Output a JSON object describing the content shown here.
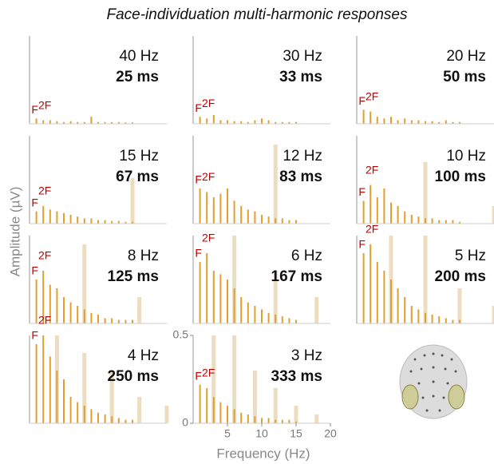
{
  "title": "Face-individuation multi-harmonic responses",
  "y_label": "Amplitude (µV)",
  "x_label": "Frequency (Hz)",
  "chart_data": [
    {
      "type": "spectrum",
      "title": "40 Hz",
      "subtitle": "25 ms",
      "annotations": [
        "F",
        "2F"
      ],
      "color": "#e0a030",
      "x": [
        1,
        2,
        3,
        4,
        5,
        6,
        7,
        8,
        9,
        10,
        11,
        12,
        13,
        14,
        15
      ],
      "values": [
        0.03,
        0.02,
        0.02,
        0.015,
        0.01,
        0.015,
        0.01,
        0.01,
        0.04,
        0.01,
        0.01,
        0.01,
        0.01,
        0.008,
        0.008
      ],
      "xlim": [
        0,
        20
      ],
      "ylim": [
        0,
        0.5
      ]
    },
    {
      "type": "spectrum",
      "title": "30 Hz",
      "subtitle": "33 ms",
      "annotations": [
        "F",
        "2F"
      ],
      "color": "#e0a030",
      "x": [
        1,
        2,
        3,
        4,
        5,
        6,
        7,
        8,
        9,
        10,
        11,
        12,
        13,
        14,
        15
      ],
      "values": [
        0.04,
        0.03,
        0.05,
        0.02,
        0.02,
        0.015,
        0.015,
        0.01,
        0.02,
        0.03,
        0.02,
        0.01,
        0.01,
        0.01,
        0.01
      ],
      "xlim": [
        0,
        20
      ],
      "ylim": [
        0,
        0.5
      ]
    },
    {
      "type": "spectrum",
      "title": "20 Hz",
      "subtitle": "50 ms",
      "annotations": [
        "F",
        "2F"
      ],
      "color": "#e0a030",
      "x": [
        1,
        2,
        3,
        4,
        5,
        6,
        7,
        8,
        9,
        10,
        11,
        12,
        13,
        14,
        15
      ],
      "values": [
        0.08,
        0.07,
        0.04,
        0.03,
        0.04,
        0.02,
        0.03,
        0.02,
        0.02,
        0.015,
        0.015,
        0.01,
        0.02,
        0.01,
        0.01
      ],
      "xlim": [
        0,
        20
      ],
      "ylim": [
        0,
        0.5
      ]
    },
    {
      "type": "spectrum",
      "title": "15 Hz",
      "subtitle": "67 ms",
      "annotations": [
        "F",
        "2F"
      ],
      "color": "#e0a030",
      "x": [
        1,
        2,
        3,
        4,
        5,
        6,
        7,
        8,
        9,
        10,
        11,
        12,
        13,
        14,
        15
      ],
      "values": [
        0.07,
        0.1,
        0.08,
        0.07,
        0.06,
        0.05,
        0.04,
        0.03,
        0.03,
        0.02,
        0.02,
        0.015,
        0.015,
        0.01,
        0.01
      ],
      "base": {
        "color": "#ecdcc0",
        "x": [
          15
        ],
        "values": [
          0.26
        ]
      },
      "xlim": [
        0,
        20
      ],
      "ylim": [
        0,
        0.5
      ]
    },
    {
      "type": "spectrum",
      "title": "12 Hz",
      "subtitle": "83 ms",
      "annotations": [
        "F",
        "2F"
      ],
      "color": "#e0a030",
      "x": [
        1,
        2,
        3,
        4,
        5,
        6,
        7,
        8,
        9,
        10,
        11,
        12,
        13,
        14,
        15
      ],
      "values": [
        0.2,
        0.18,
        0.15,
        0.17,
        0.2,
        0.13,
        0.1,
        0.08,
        0.07,
        0.05,
        0.04,
        0.03,
        0.03,
        0.02,
        0.02
      ],
      "base": {
        "color": "#ecdcc0",
        "x": [
          12
        ],
        "values": [
          0.45
        ]
      },
      "xlim": [
        0,
        20
      ],
      "ylim": [
        0,
        0.5
      ]
    },
    {
      "type": "spectrum",
      "title": "10 Hz",
      "subtitle": "100 ms",
      "annotations": [
        "F",
        "2F"
      ],
      "color": "#e0a030",
      "x": [
        1,
        2,
        3,
        4,
        5,
        6,
        7,
        8,
        9,
        10,
        11,
        12,
        13,
        14,
        15
      ],
      "values": [
        0.13,
        0.22,
        0.15,
        0.2,
        0.12,
        0.1,
        0.07,
        0.05,
        0.04,
        0.03,
        0.03,
        0.02,
        0.02,
        0.02,
        0.01
      ],
      "base": {
        "color": "#ecdcc0",
        "x": [
          10,
          20
        ],
        "values": [
          0.35,
          0.1
        ]
      },
      "xlim": [
        0,
        20
      ],
      "ylim": [
        0,
        0.5
      ]
    },
    {
      "type": "spectrum",
      "title": "8 Hz",
      "subtitle": "125 ms",
      "annotations": [
        "F",
        "2F"
      ],
      "color": "#e0a030",
      "x": [
        1,
        2,
        3,
        4,
        5,
        6,
        7,
        8,
        9,
        10,
        11,
        12,
        13,
        14,
        15
      ],
      "values": [
        0.25,
        0.3,
        0.22,
        0.2,
        0.15,
        0.12,
        0.1,
        0.08,
        0.06,
        0.05,
        0.03,
        0.03,
        0.02,
        0.02,
        0.02
      ],
      "base": {
        "color": "#ecdcc0",
        "x": [
          8,
          16
        ],
        "values": [
          0.45,
          0.15
        ]
      },
      "xlim": [
        0,
        20
      ],
      "ylim": [
        0,
        0.5
      ]
    },
    {
      "type": "spectrum",
      "title": "6 Hz",
      "subtitle": "167 ms",
      "annotations": [
        "F",
        "2F"
      ],
      "color": "#e0a030",
      "x": [
        1,
        2,
        3,
        4,
        5,
        6,
        7,
        8,
        9,
        10,
        11,
        12,
        13,
        14,
        15
      ],
      "values": [
        0.35,
        0.4,
        0.3,
        0.28,
        0.25,
        0.2,
        0.15,
        0.12,
        0.1,
        0.08,
        0.06,
        0.05,
        0.04,
        0.03,
        0.02
      ],
      "base": {
        "color": "#ecdcc0",
        "x": [
          6,
          12,
          18
        ],
        "values": [
          0.5,
          0.3,
          0.15
        ]
      },
      "xlim": [
        0,
        20
      ],
      "ylim": [
        0,
        0.5
      ]
    },
    {
      "type": "spectrum",
      "title": "5 Hz",
      "subtitle": "200 ms",
      "annotations": [
        "F",
        "2F"
      ],
      "color": "#e0a030",
      "x": [
        1,
        2,
        3,
        4,
        5,
        6,
        7,
        8,
        9,
        10,
        11,
        12,
        13,
        14,
        15
      ],
      "values": [
        0.4,
        0.45,
        0.35,
        0.3,
        0.25,
        0.2,
        0.15,
        0.1,
        0.08,
        0.06,
        0.05,
        0.04,
        0.03,
        0.02,
        0.02
      ],
      "base": {
        "color": "#ecdcc0",
        "x": [
          5,
          10,
          15,
          20
        ],
        "values": [
          0.5,
          0.5,
          0.2,
          0.1
        ]
      },
      "xlim": [
        0,
        20
      ],
      "ylim": [
        0,
        0.5
      ]
    },
    {
      "type": "spectrum",
      "title": "4 Hz",
      "subtitle": "250 ms",
      "annotations": [
        "F",
        "2F"
      ],
      "color": "#e0a030",
      "x": [
        1,
        2,
        3,
        4,
        5,
        6,
        7,
        8,
        9,
        10,
        11,
        12,
        13,
        14,
        15
      ],
      "values": [
        0.45,
        0.5,
        0.38,
        0.3,
        0.25,
        0.15,
        0.12,
        0.1,
        0.08,
        0.06,
        0.05,
        0.04,
        0.03,
        0.02,
        0.02
      ],
      "base": {
        "color": "#ecdcc0",
        "x": [
          4,
          8,
          12,
          16,
          20
        ],
        "values": [
          0.5,
          0.4,
          0.3,
          0.15,
          0.1
        ]
      },
      "xlim": [
        0,
        20
      ],
      "ylim": [
        0,
        0.5
      ]
    },
    {
      "type": "spectrum",
      "title": "3 Hz",
      "subtitle": "333 ms",
      "annotations": [
        "F",
        "2F"
      ],
      "color": "#e0a030",
      "x": [
        1,
        2,
        3,
        4,
        5,
        6,
        7,
        8,
        9,
        10,
        11,
        12,
        13,
        14,
        15
      ],
      "values": [
        0.22,
        0.2,
        0.15,
        0.12,
        0.1,
        0.08,
        0.06,
        0.05,
        0.04,
        0.03,
        0.03,
        0.02,
        0.02,
        0.02,
        0.01
      ],
      "base": {
        "color": "#ecdcc0",
        "x": [
          3,
          6,
          9,
          12,
          15,
          18
        ],
        "values": [
          0.5,
          0.5,
          0.3,
          0.2,
          0.1,
          0.05
        ]
      },
      "xlim": [
        0,
        20
      ],
      "ylim": [
        0,
        0.5
      ],
      "xticks": [
        5,
        10,
        15,
        20
      ],
      "yticks": [
        0,
        0.5
      ]
    }
  ]
}
